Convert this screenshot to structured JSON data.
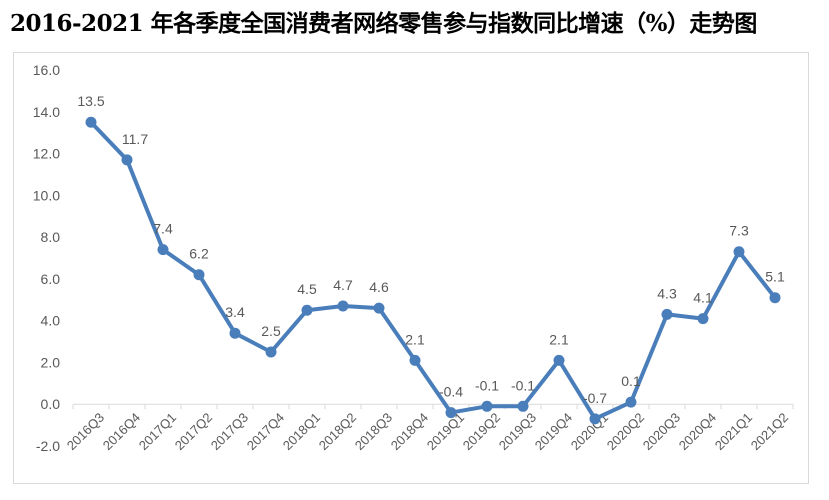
{
  "chart_data": {
    "type": "line",
    "title": "2016-2021 年各季度全国消费者网络零售参与指数同比增速（%）走势图",
    "categories": [
      "2016Q3",
      "2016Q4",
      "2017Q1",
      "2017Q2",
      "2017Q3",
      "2017Q4",
      "2018Q1",
      "2018Q2",
      "2018Q3",
      "2018Q4",
      "2019Q1",
      "2019Q2",
      "2019Q3",
      "2019Q4",
      "2020Q1",
      "2020Q2",
      "2020Q3",
      "2020Q4",
      "2021Q1",
      "2021Q2"
    ],
    "values": [
      13.5,
      11.7,
      7.4,
      6.2,
      3.4,
      2.5,
      4.5,
      4.7,
      4.6,
      2.1,
      -0.4,
      -0.1,
      -0.1,
      2.1,
      -0.7,
      0.1,
      4.3,
      4.1,
      7.3,
      5.1
    ],
    "data_labels": [
      "13.5",
      "11.7",
      "7.4",
      "6.2",
      "3.4",
      "2.5",
      "4.5",
      "4.7",
      "4.6",
      "2.1",
      "-0.4",
      "-0.1",
      "-0.1",
      "2.1",
      "-0.7",
      "0.1",
      "4.3",
      "4.1",
      "7.3",
      "5.1"
    ],
    "yticks": [
      "-2.0",
      "0.0",
      "2.0",
      "4.0",
      "6.0",
      "8.0",
      "10.0",
      "12.0",
      "14.0",
      "16.0"
    ],
    "ylim": [
      -2,
      16
    ],
    "xlabel": "",
    "ylabel": "",
    "grid": false,
    "legend": "none",
    "color": "#4a7ebb"
  }
}
